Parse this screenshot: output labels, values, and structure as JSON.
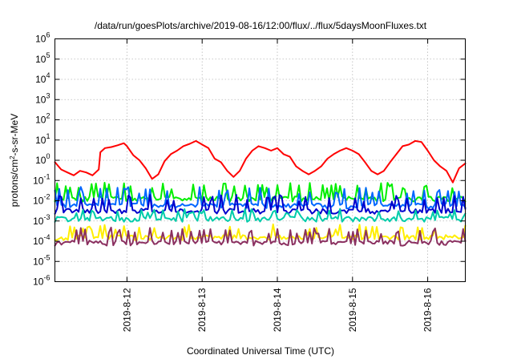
{
  "chart_data": {
    "type": "line",
    "title": "/data/run/goesPlots/archive/2019-08-16/12:00/flux/../flux/5daysMoonFluxes.txt",
    "xlabel": "Coordinated Universal Time (UTC)",
    "ylabel": {
      "prefix": "protons/cm",
      "sup": "2",
      "suffix": "-s-sr-MeV"
    },
    "y_scale": "log",
    "ylim": [
      1e-06,
      1000000.0
    ],
    "y_ticks": [
      {
        "base": "10",
        "exp": "-6",
        "value": 1e-06
      },
      {
        "base": "10",
        "exp": "-5",
        "value": 1e-05
      },
      {
        "base": "10",
        "exp": "-4",
        "value": 0.0001
      },
      {
        "base": "10",
        "exp": "-3",
        "value": 0.001
      },
      {
        "base": "10",
        "exp": "-2",
        "value": 0.01
      },
      {
        "base": "10",
        "exp": "-1",
        "value": 0.1
      },
      {
        "base": "10",
        "exp": "0",
        "value": 1
      },
      {
        "base": "10",
        "exp": "1",
        "value": 10
      },
      {
        "base": "10",
        "exp": "2",
        "value": 100
      },
      {
        "base": "10",
        "exp": "3",
        "value": 1000
      },
      {
        "base": "10",
        "exp": "4",
        "value": 10000
      },
      {
        "base": "10",
        "exp": "5",
        "value": 100000
      },
      {
        "base": "10",
        "exp": "6",
        "value": 1000000
      }
    ],
    "xlim": [
      "2019-08-11T01:00",
      "2019-08-16T12:00"
    ],
    "x_ticks": [
      {
        "label": "2019-8-12",
        "value": "2019-08-12T00:00"
      },
      {
        "label": "2019-8-13",
        "value": "2019-08-13T00:00"
      },
      {
        "label": "2019-8-14",
        "value": "2019-08-14T00:00"
      },
      {
        "label": "2019-8-15",
        "value": "2019-08-15T00:00"
      },
      {
        "label": "2019-8-16",
        "value": "2019-08-16T00:00"
      }
    ],
    "grid": true,
    "legend": "none",
    "series": [
      {
        "color": "#ff0000",
        "points": [
          [
            "2019-08-11T01:00",
            0.8
          ],
          [
            "2019-08-11T03:00",
            0.35
          ],
          [
            "2019-08-11T05:00",
            0.25
          ],
          [
            "2019-08-11T07:00",
            0.18
          ],
          [
            "2019-08-11T09:00",
            0.3
          ],
          [
            "2019-08-11T11:00",
            0.25
          ],
          [
            "2019-08-11T13:00",
            0.18
          ],
          [
            "2019-08-11T15:00",
            0.35
          ],
          [
            "2019-08-11T15:30",
            2.5
          ],
          [
            "2019-08-11T17:00",
            4
          ],
          [
            "2019-08-11T19:00",
            4.5
          ],
          [
            "2019-08-11T21:00",
            5.5
          ],
          [
            "2019-08-11T23:00",
            7
          ],
          [
            "2019-08-12T00:00",
            5
          ],
          [
            "2019-08-12T02:00",
            1.8
          ],
          [
            "2019-08-12T04:00",
            1
          ],
          [
            "2019-08-12T06:00",
            0.4
          ],
          [
            "2019-08-12T08:00",
            0.12
          ],
          [
            "2019-08-12T10:00",
            0.2
          ],
          [
            "2019-08-12T12:00",
            0.9
          ],
          [
            "2019-08-12T14:00",
            2
          ],
          [
            "2019-08-12T16:00",
            3
          ],
          [
            "2019-08-12T18:00",
            5
          ],
          [
            "2019-08-12T20:00",
            6.5
          ],
          [
            "2019-08-12T22:00",
            9
          ],
          [
            "2019-08-13T00:00",
            6
          ],
          [
            "2019-08-13T02:00",
            4
          ],
          [
            "2019-08-13T04:00",
            1.2
          ],
          [
            "2019-08-13T06:00",
            0.8
          ],
          [
            "2019-08-13T08:00",
            0.3
          ],
          [
            "2019-08-13T10:00",
            0.15
          ],
          [
            "2019-08-13T12:00",
            0.3
          ],
          [
            "2019-08-13T14:00",
            1.2
          ],
          [
            "2019-08-13T16:00",
            3
          ],
          [
            "2019-08-13T18:00",
            5
          ],
          [
            "2019-08-13T20:00",
            4
          ],
          [
            "2019-08-13T22:00",
            3
          ],
          [
            "2019-08-14T00:00",
            4
          ],
          [
            "2019-08-14T02:00",
            2
          ],
          [
            "2019-08-14T04:00",
            1.5
          ],
          [
            "2019-08-14T06:00",
            0.5
          ],
          [
            "2019-08-14T08:00",
            0.3
          ],
          [
            "2019-08-14T10:00",
            0.2
          ],
          [
            "2019-08-14T12:00",
            0.3
          ],
          [
            "2019-08-14T14:00",
            0.5
          ],
          [
            "2019-08-14T16:00",
            1.2
          ],
          [
            "2019-08-14T18:00",
            2
          ],
          [
            "2019-08-14T20:00",
            3
          ],
          [
            "2019-08-14T22:00",
            4
          ],
          [
            "2019-08-15T00:00",
            3
          ],
          [
            "2019-08-15T02:00",
            2
          ],
          [
            "2019-08-15T04:00",
            0.8
          ],
          [
            "2019-08-15T06:00",
            0.3
          ],
          [
            "2019-08-15T08:00",
            0.2
          ],
          [
            "2019-08-15T10:00",
            0.3
          ],
          [
            "2019-08-15T12:00",
            0.8
          ],
          [
            "2019-08-15T14:00",
            2
          ],
          [
            "2019-08-15T16:00",
            5
          ],
          [
            "2019-08-15T18:00",
            6
          ],
          [
            "2019-08-15T20:00",
            9
          ],
          [
            "2019-08-15T22:00",
            8
          ],
          [
            "2019-08-16T00:00",
            3
          ],
          [
            "2019-08-16T02:00",
            1
          ],
          [
            "2019-08-16T04:00",
            0.5
          ],
          [
            "2019-08-16T06:00",
            0.3
          ],
          [
            "2019-08-16T08:00",
            0.08
          ],
          [
            "2019-08-16T10:00",
            0.4
          ],
          [
            "2019-08-16T12:00",
            0.7
          ]
        ]
      },
      {
        "color": "#00ee00",
        "baseline": 0.012,
        "spike_peak": 0.08,
        "seed": 11
      },
      {
        "color": "#0066ff",
        "baseline": 0.0055,
        "spike_peak": 0.05,
        "seed": 23
      },
      {
        "color": "#0000cc",
        "baseline": 0.003,
        "spike_peak": 0.02,
        "seed": 37
      },
      {
        "color": "#00ccaa",
        "baseline": 0.0012,
        "spike_peak": 0.004,
        "seed": 41
      },
      {
        "color": "#ffee00",
        "baseline": 0.00015,
        "spike_peak": 0.0007,
        "seed": 53
      },
      {
        "color": "#8b3060",
        "baseline": 8e-05,
        "spike_peak": 0.0005,
        "seed": 67
      }
    ]
  }
}
